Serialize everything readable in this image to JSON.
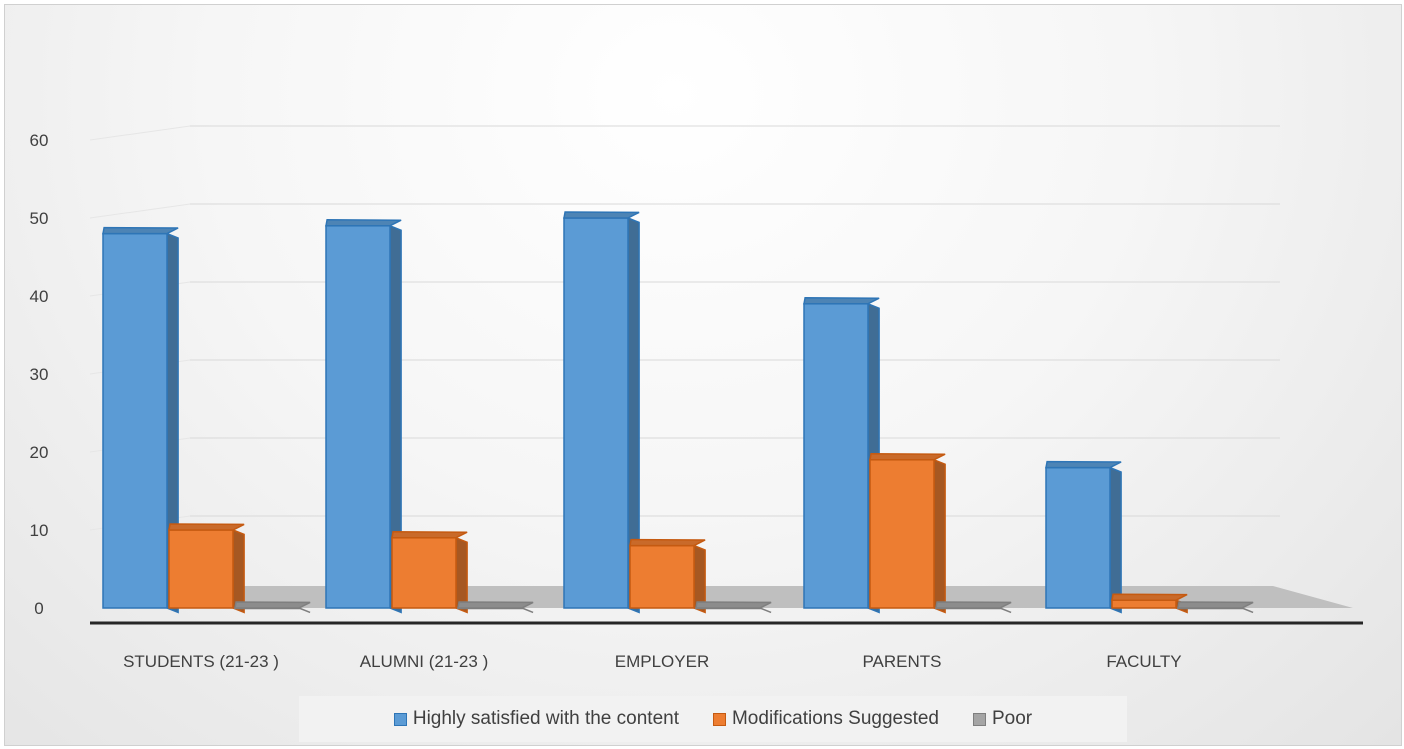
{
  "chart_data": {
    "type": "bar",
    "categories": [
      "STUDENTS (21-23 )",
      "ALUMNI (21-23 )",
      "EMPLOYER",
      "PARENTS",
      "FACULTY"
    ],
    "series": [
      {
        "name": "Highly satisfied with the content",
        "values": [
          48,
          49,
          50,
          39,
          18
        ],
        "color": "#5b9bd5"
      },
      {
        "name": "Modifications Suggested",
        "values": [
          10,
          9,
          8,
          19,
          1
        ],
        "color": "#ed7d31"
      },
      {
        "name": "Poor",
        "values": [
          0,
          0,
          0,
          0,
          0
        ],
        "color": "#a5a5a5"
      }
    ],
    "y_ticks": [
      "0",
      "10",
      "20",
      "30",
      "40",
      "50",
      "60"
    ],
    "ylim": [
      0,
      60
    ],
    "grid": true,
    "legend_position": "bottom",
    "style": "3d-column"
  }
}
